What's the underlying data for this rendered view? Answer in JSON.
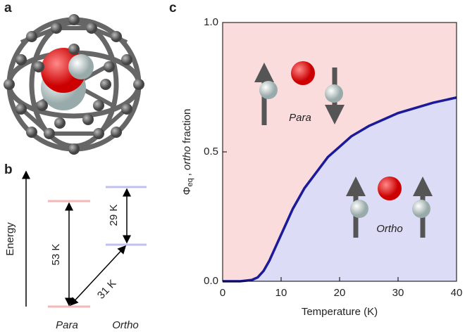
{
  "panel_labels": [
    "a",
    "b",
    "c"
  ],
  "energy_diagram": {
    "axis_label": "Energy",
    "transitions": [
      "53 K",
      "29 K",
      "31 K"
    ],
    "states": [
      "Para",
      "Ortho"
    ]
  },
  "chart_data": {
    "type": "line",
    "x": [
      0,
      3,
      5,
      6,
      7,
      8,
      9,
      10,
      11,
      12,
      13,
      14,
      16,
      18,
      20,
      22,
      25,
      28,
      30,
      33,
      36,
      40
    ],
    "series": [
      {
        "color": "#1a1a9a",
        "values": [
          0,
          0,
          0.005,
          0.015,
          0.04,
          0.08,
          0.13,
          0.18,
          0.23,
          0.28,
          0.32,
          0.36,
          0.42,
          0.48,
          0.52,
          0.56,
          0.6,
          0.63,
          0.65,
          0.67,
          0.69,
          0.71
        ]
      }
    ],
    "xlim": [
      0,
      40
    ],
    "xticks": [
      0,
      10,
      20,
      30,
      40
    ],
    "ylim": [
      0,
      1
    ],
    "yticks": [
      {
        "value": 0,
        "label": "0.0"
      },
      {
        "value": 0.5,
        "label": "0.5"
      },
      {
        "value": 1,
        "label": "1.0"
      }
    ],
    "xlabel": "Temperature (K)",
    "ylabel": {
      "symbol": "Φ",
      "subscript": "eq",
      "separator": ",",
      "italic": "ortho",
      "rest": "fraction"
    },
    "upper_color": "#fbdcdc",
    "lower_color": "#dcdcf6",
    "annotations": [
      "Para",
      "Ortho"
    ]
  }
}
